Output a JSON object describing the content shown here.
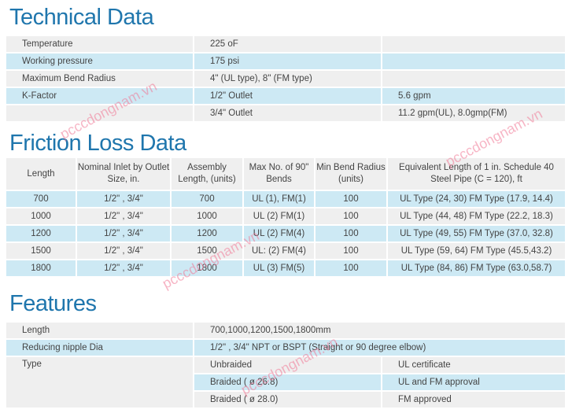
{
  "technical": {
    "title": "Technical Data",
    "rows": [
      [
        "Temperature",
        "225 oF",
        ""
      ],
      [
        "Working pressure",
        "175 psi",
        ""
      ],
      [
        "Maximum Bend Radius",
        "4\" (UL type), 8\" (FM type)",
        ""
      ],
      [
        "K-Factor",
        "1/2\"  Outlet",
        "5.6 gpm"
      ],
      [
        "",
        "3/4\"  Outlet",
        "11.2 gpm(UL), 8.0gmp(FM)"
      ]
    ]
  },
  "friction": {
    "title": "Friction Loss Data",
    "headers": [
      "Length",
      "Nominal Inlet by Outlet Size, in.",
      "Assembly Length, (units)",
      "Max No. of 90\"  Bends",
      "Min Bend Radius (units)",
      "Equivalent Length of 1 in. Schedule 40 Steel Pipe (C = 120), ft"
    ],
    "rows": [
      [
        "700",
        "1/2\" , 3/4\"",
        "700",
        "UL (1), FM(1)",
        "100",
        "UL Type (24, 30)  FM Type (17.9, 14.4)"
      ],
      [
        "1000",
        "1/2\" , 3/4\"",
        "1000",
        "UL (2) FM(1)",
        "100",
        "UL Type (44, 48)  FM Type (22.2, 18.3)"
      ],
      [
        "1200",
        "1/2\" , 3/4\"",
        "1200",
        "UL (2) FM(4)",
        "100",
        "UL Type (49, 55)  FM Type (37.0, 32.8)"
      ],
      [
        "1500",
        "1/2\" , 3/4\"",
        "1500",
        "UL: (2) FM(4)",
        "100",
        "UL Type (59, 64)  FM Type (45.5,43.2)"
      ],
      [
        "1800",
        "1/2\" , 3/4\"",
        "1800",
        "UL (3) FM(5)",
        "100",
        "UL Type (84, 86)  FM Type (63.0,58.7)"
      ]
    ]
  },
  "features": {
    "title": "Features",
    "length_label": "Length",
    "length_value": "700,1000,1200,1500,1800mm",
    "nipple_label": "Reducing nipple Dia",
    "nipple_value": "1/2\" , 3/4\"  NPT or BSPT (Straight or 90 degree elbow)",
    "type_label": "Type",
    "types": [
      [
        "Unbraided",
        "UL certificate"
      ],
      [
        "Braided ( ø 26.8)",
        "UL and FM approval"
      ],
      [
        "Braided ( ø 28.0)",
        "FM approved"
      ]
    ]
  },
  "watermark": "pcccdongnam.vn"
}
